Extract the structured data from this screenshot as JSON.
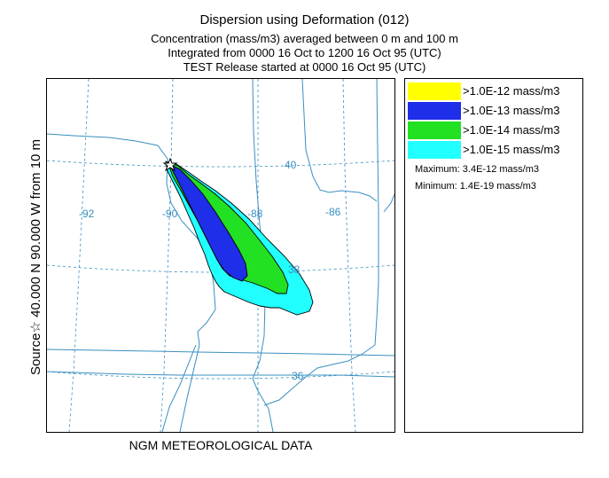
{
  "title": "Dispersion using Deformation (012)",
  "subtitle_lines": [
    "Concentration  (mass/m3) averaged between     0 m and    100 m",
    "Integrated from 0000 16 Oct to 1200 16 Oct 95 (UTC)",
    "TEST Release started at 0000 16 Oct 95 (UTC)"
  ],
  "y_axis_label": "Source☆ 40.000  N  90.000  W    from   10 m",
  "x_axis_label": "NGM  METEOROLOGICAL DATA",
  "grid_labels": {
    "lon": [
      "-92",
      "-90",
      "-88",
      "-86"
    ],
    "lat": [
      "40",
      "38",
      "36"
    ]
  },
  "legend": {
    "items": [
      {
        "label": ">1.0E-12 mass/m3",
        "color": "#ffff00"
      },
      {
        "label": ">1.0E-13 mass/m3",
        "color": "#1f2ee8"
      },
      {
        "label": ">1.0E-14 mass/m3",
        "color": "#22e022"
      },
      {
        "label": ">1.0E-15 mass/m3",
        "color": "#22ffff"
      }
    ],
    "maximum": "Maximum: 3.4E-12 mass/m3",
    "minimum": "Minimum: 1.4E-19 mass/m3"
  },
  "colors": {
    "grid": "#3a8fbf",
    "boundary": "#3a8fbf"
  }
}
